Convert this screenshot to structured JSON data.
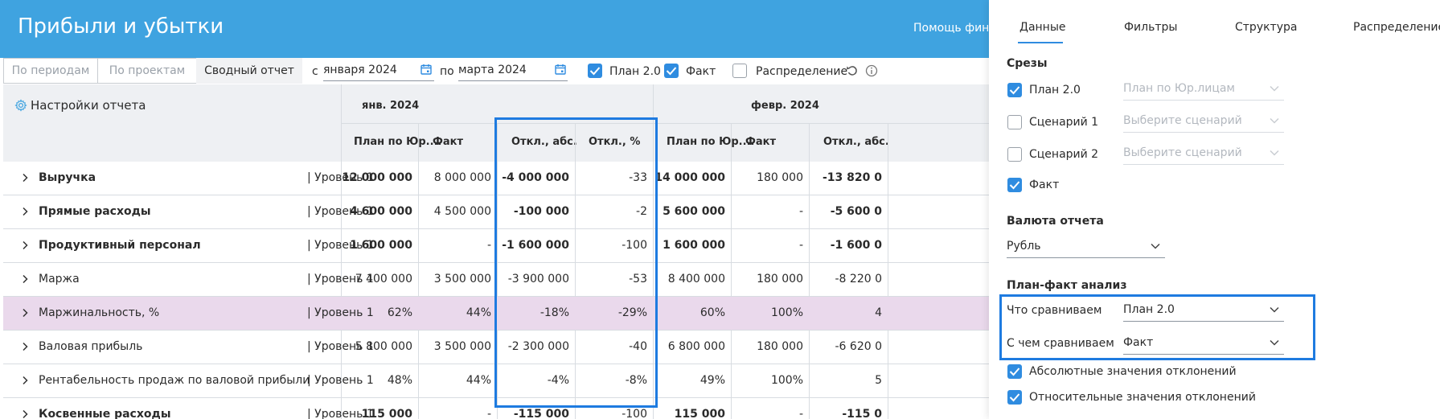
{
  "header": {
    "title": "Прибыли и убытки",
    "help": "Помощь фина"
  },
  "toolbar": {
    "view_tabs": [
      "По периодам",
      "По проектам",
      "Сводный отчет"
    ],
    "from_label": "с",
    "from_value": "января 2024",
    "to_label": "по",
    "to_value": "марта 2024",
    "checks": [
      {
        "label": "План 2.0",
        "checked": true
      },
      {
        "label": "Факт",
        "checked": true
      },
      {
        "label": "Распределение",
        "checked": false
      }
    ]
  },
  "table": {
    "settings_label": "Настройки отчета",
    "months": [
      "янв. 2024",
      "февр. 2024"
    ],
    "columns": [
      "План по Юр....",
      "Факт",
      "Откл., абс.",
      "Откл., %",
      "План по Юр....",
      "Факт",
      "Откл., абс."
    ],
    "rows": [
      {
        "name": "Выручка",
        "level": "| Уровень 1",
        "bold": true,
        "cells": [
          "12 000 000",
          "8 000 000",
          "-4 000 000",
          "-33",
          "14 000 000",
          "180 000",
          "-13 820 0"
        ]
      },
      {
        "name": "Прямые расходы",
        "level": "| Уровень 1",
        "bold": true,
        "cells": [
          "4 600 000",
          "4 500 000",
          "-100 000",
          "-2",
          "5 600 000",
          "-",
          "-5 600 0"
        ]
      },
      {
        "name": "Продуктивный персонал",
        "level": "| Уровень 1",
        "bold": true,
        "cells": [
          "1 600 000",
          "-",
          "-1 600 000",
          "-100",
          "1 600 000",
          "-",
          "-1 600 0"
        ]
      },
      {
        "name": "Маржа",
        "level": "| Уровень 1",
        "bold": false,
        "cells": [
          "7 400 000",
          "3 500 000",
          "-3 900 000",
          "-53",
          "8 400 000",
          "180 000",
          "-8 220 0"
        ]
      },
      {
        "name": "Маржинальность, %",
        "level": "| Уровень 1",
        "bold": false,
        "highlight": true,
        "cells": [
          "62%",
          "44%",
          "-18%",
          "-29%",
          "60%",
          "100%",
          "4"
        ]
      },
      {
        "name": "Валовая прибыль",
        "level": "| Уровень 1",
        "bold": false,
        "cells": [
          "5 800 000",
          "3 500 000",
          "-2 300 000",
          "-40",
          "6 800 000",
          "180 000",
          "-6 620 0"
        ]
      },
      {
        "name": "Рентабельность продаж по валовой прибыли",
        "level": "| Уровень 1",
        "bold": false,
        "cells": [
          "48%",
          "44%",
          "-4%",
          "-8%",
          "49%",
          "100%",
          "5"
        ]
      },
      {
        "name": "Косвенные расходы",
        "level": "| Уровень 1",
        "bold": true,
        "cells": [
          "115 000",
          "-",
          "-115 000",
          "-100",
          "115 000",
          "-",
          "-115 0"
        ]
      }
    ]
  },
  "panel": {
    "tabs": [
      "Данные",
      "Фильтры",
      "Структура",
      "Распределение"
    ],
    "slices_title": "Срезы",
    "slices": [
      {
        "label": "План 2.0",
        "checked": true,
        "select": "План по Юр.лицам"
      },
      {
        "label": "Сценарий 1",
        "checked": false,
        "select": "Выберите сценарий"
      },
      {
        "label": "Сценарий 2",
        "checked": false,
        "select": "Выберите сценарий"
      },
      {
        "label": "Факт",
        "checked": true
      }
    ],
    "currency_title": "Валюта отчета",
    "currency_value": "Рубль",
    "analysis_title": "План-факт анализ",
    "compare_what_label": "Что сравниваем",
    "compare_what_value": "План 2.0",
    "compare_with_label": "С чем сравниваем",
    "compare_with_value": "Факт",
    "options": [
      {
        "label": "Абсолютные значения отклонений",
        "checked": true
      },
      {
        "label": "Относительные значения отклонений",
        "checked": true
      }
    ]
  },
  "colors": {
    "appbar": "#3fa3e0",
    "accent": "#2f8ce0",
    "highlight_box": "#1e7be0",
    "row_highlight": "#ead9ec"
  }
}
